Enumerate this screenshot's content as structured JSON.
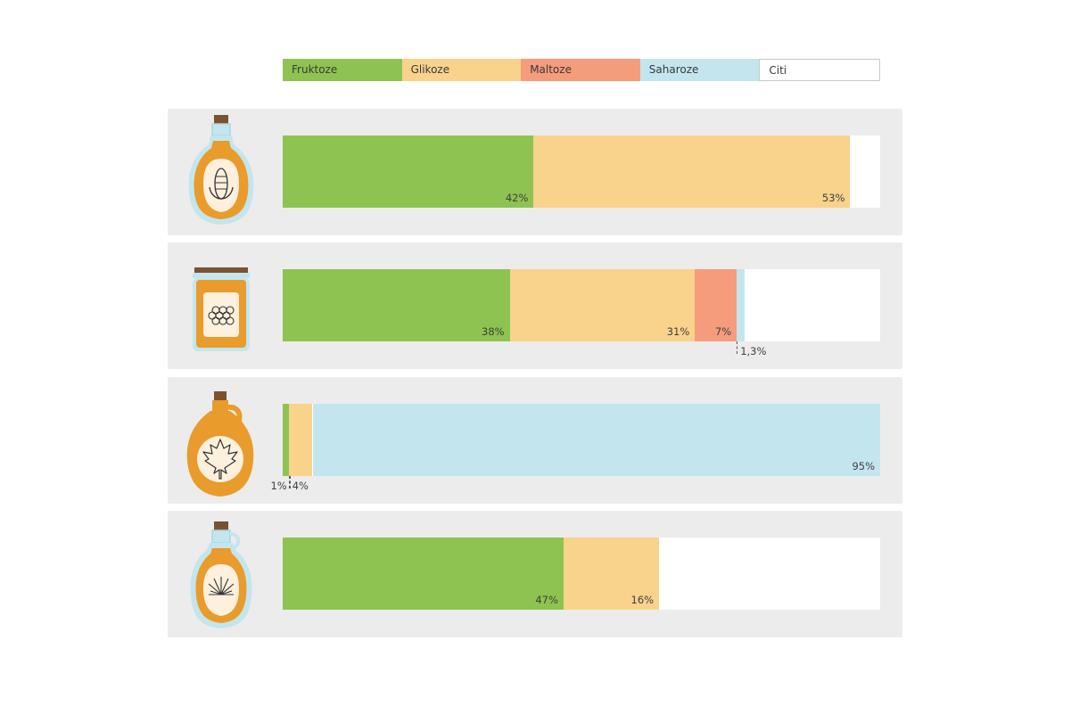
{
  "chart_data": {
    "type": "bar",
    "orientation": "horizontal",
    "stacked": true,
    "legend_position": "top",
    "xlim": [
      0,
      100
    ],
    "series": [
      {
        "name": "Fruktoze",
        "color": "#8fc351"
      },
      {
        "name": "Glikoze",
        "color": "#f9d28c"
      },
      {
        "name": "Maltoze",
        "color": "#f59c7c"
      },
      {
        "name": "Saharoze",
        "color": "#c3e6ee"
      },
      {
        "name": "Citi",
        "color": "#ffffff"
      }
    ],
    "rows": [
      {
        "icon": "corn-syrup-bottle-icon",
        "values": [
          42,
          53,
          0,
          0
        ],
        "labels": [
          "42%",
          "53%",
          "",
          ""
        ]
      },
      {
        "icon": "honey-jar-icon",
        "values": [
          38,
          31,
          7,
          1.3
        ],
        "labels": [
          "38%",
          "31%",
          "7%",
          "1,3%"
        ]
      },
      {
        "icon": "maple-syrup-jug-icon",
        "values": [
          1,
          4,
          0,
          95
        ],
        "labels": [
          "1%",
          "4%",
          "",
          "95%"
        ]
      },
      {
        "icon": "agave-syrup-bottle-icon",
        "values": [
          47,
          16,
          0,
          0
        ],
        "labels": [
          "47%",
          "16%",
          "",
          ""
        ]
      }
    ]
  }
}
